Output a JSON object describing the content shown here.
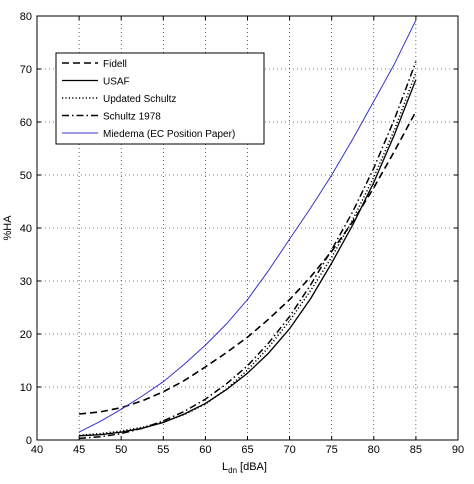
{
  "chart_data": {
    "type": "line",
    "title": "",
    "xlabel": "L",
    "xlabel_subscript": "dn",
    "xlabel_unit": "[dBA]",
    "ylabel": "%HA",
    "xlim": [
      40,
      90
    ],
    "ylim": [
      0,
      80
    ],
    "xticks": [
      40,
      45,
      50,
      55,
      60,
      65,
      70,
      75,
      80,
      85,
      90
    ],
    "yticks": [
      0,
      10,
      20,
      30,
      40,
      50,
      60,
      70,
      80
    ],
    "grid": true,
    "legend_position": "top-left",
    "series": [
      {
        "name": "Fidell",
        "color": "#000000",
        "style": "dashed",
        "x": [
          45,
          47.5,
          50,
          52.5,
          55,
          57.5,
          60,
          62.5,
          65,
          67.5,
          70,
          72.5,
          75,
          77.5,
          80,
          82.5,
          85
        ],
        "y": [
          4.9,
          5.3,
          6.1,
          7.4,
          9.1,
          11.2,
          13.8,
          16.5,
          19.4,
          22.8,
          26.5,
          30.8,
          35.6,
          41.2,
          47.6,
          54.6,
          62.0
        ]
      },
      {
        "name": "USAF",
        "color": "#000000",
        "style": "solid",
        "x": [
          45,
          47.5,
          50,
          52.5,
          55,
          57.5,
          60,
          62.5,
          65,
          67.5,
          70,
          72.5,
          75,
          77.5,
          80,
          82.5,
          85
        ],
        "y": [
          0.8,
          1.0,
          1.5,
          2.2,
          3.3,
          4.9,
          6.9,
          9.5,
          12.6,
          16.4,
          21.0,
          26.7,
          33.4,
          40.6,
          48.6,
          57.8,
          68.0
        ]
      },
      {
        "name": "Updated Schultz",
        "color": "#000000",
        "style": "dotted",
        "x": [
          45,
          47.5,
          50,
          52.5,
          55,
          57.5,
          60,
          62.5,
          65,
          67.5,
          70,
          72.5,
          75,
          77.5,
          80,
          82.5,
          85
        ],
        "y": [
          0.9,
          1.2,
          1.7,
          2.4,
          3.4,
          4.8,
          6.8,
          9.6,
          13.2,
          17.5,
          22.5,
          28.2,
          34.5,
          41.6,
          49.6,
          58.7,
          69.3
        ]
      },
      {
        "name": "Schultz 1978",
        "color": "#000000",
        "style": "dashdot",
        "x": [
          45,
          47.5,
          50,
          52.5,
          55,
          57.5,
          60,
          62.5,
          65,
          67.5,
          70,
          72.5,
          75,
          77.5,
          80,
          82.5,
          85
        ],
        "y": [
          0.3,
          0.6,
          1.2,
          2.2,
          3.6,
          5.4,
          7.7,
          10.6,
          14.0,
          18.3,
          23.3,
          29.3,
          35.9,
          43.1,
          51.3,
          60.7,
          71.4
        ]
      },
      {
        "name": "Miedema (EC Position Paper)",
        "color": "#3333cc",
        "style": "solid",
        "x": [
          45,
          47.5,
          50,
          52.5,
          55,
          57.5,
          60,
          62.5,
          65,
          67.5,
          70,
          72.5,
          75,
          77.5,
          80,
          82.5,
          85
        ],
        "y": [
          1.5,
          3.5,
          5.8,
          8.3,
          11.0,
          14.3,
          17.9,
          21.9,
          26.5,
          32.0,
          37.9,
          43.8,
          50.0,
          56.8,
          63.9,
          71.1,
          79.2
        ]
      }
    ]
  }
}
